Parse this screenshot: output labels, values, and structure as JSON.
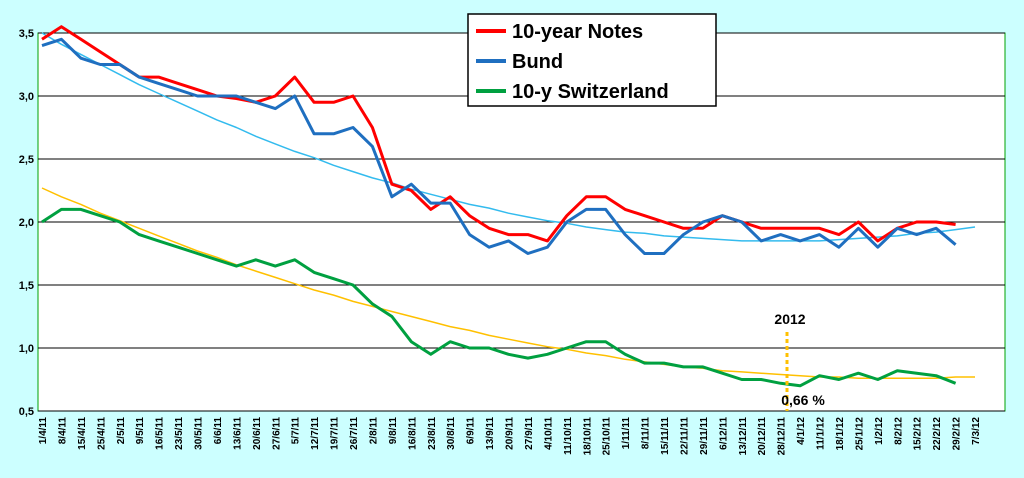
{
  "chart_data": {
    "type": "line",
    "categories": [
      "1/4/11",
      "8/4/11",
      "15/4/11",
      "25/4/11",
      "2/5/11",
      "9/5/11",
      "16/5/11",
      "23/5/11",
      "30/5/11",
      "6/6/11",
      "13/6/11",
      "20/6/11",
      "27/6/11",
      "5/7/11",
      "12/7/11",
      "19/7/11",
      "26/7/11",
      "2/8/11",
      "9/8/11",
      "16/8/11",
      "23/8/11",
      "30/8/11",
      "6/9/11",
      "13/9/11",
      "20/9/11",
      "27/9/11",
      "4/10/11",
      "11/10/11",
      "18/10/11",
      "25/10/11",
      "1/11/11",
      "8/11/11",
      "15/11/11",
      "22/11/11",
      "29/11/11",
      "6/12/11",
      "13/12/11",
      "20/12/11",
      "28/12/11",
      "4/1/12",
      "11/1/12",
      "18/1/12",
      "25/1/12",
      "1/2/12",
      "8/2/12",
      "15/2/12",
      "22/2/12",
      "29/2/12",
      "7/3/12"
    ],
    "series": [
      {
        "name": "10-year Notes",
        "color": "#ff0000",
        "values": [
          3.45,
          3.55,
          3.45,
          3.35,
          3.25,
          3.15,
          3.15,
          3.1,
          3.05,
          3.0,
          2.98,
          2.95,
          3.0,
          3.15,
          2.95,
          2.95,
          3.0,
          2.75,
          2.3,
          2.25,
          2.1,
          2.2,
          2.05,
          1.95,
          1.9,
          1.9,
          1.85,
          2.05,
          2.2,
          2.2,
          2.1,
          2.05,
          2.0,
          1.95,
          1.95,
          2.05,
          2.0,
          1.95,
          1.95,
          1.95,
          1.95,
          1.9,
          2.0,
          1.85,
          1.95,
          2.0,
          2.0,
          1.98,
          null
        ]
      },
      {
        "name": "Bund",
        "color": "#1f6fc0",
        "values": [
          3.4,
          3.45,
          3.3,
          3.25,
          3.25,
          3.15,
          3.1,
          3.05,
          3.0,
          3.0,
          3.0,
          2.95,
          2.9,
          3.0,
          2.7,
          2.7,
          2.75,
          2.6,
          2.2,
          2.3,
          2.15,
          2.15,
          1.9,
          1.8,
          1.85,
          1.75,
          1.8,
          2.0,
          2.1,
          2.1,
          1.9,
          1.75,
          1.75,
          1.9,
          2.0,
          2.05,
          2.0,
          1.85,
          1.9,
          1.85,
          1.9,
          1.8,
          1.95,
          1.8,
          1.95,
          1.9,
          1.95,
          1.82,
          null
        ]
      },
      {
        "name": "10-y Switzerland",
        "color": "#00a040",
        "values": [
          2.0,
          2.1,
          2.1,
          2.05,
          2.0,
          1.9,
          1.85,
          1.8,
          1.75,
          1.7,
          1.65,
          1.7,
          1.65,
          1.7,
          1.6,
          1.55,
          1.5,
          1.35,
          1.25,
          1.05,
          0.95,
          1.05,
          1.0,
          1.0,
          0.95,
          0.92,
          0.95,
          1.0,
          1.05,
          1.05,
          0.95,
          0.88,
          0.88,
          0.85,
          0.85,
          0.8,
          0.75,
          0.75,
          0.72,
          0.7,
          0.78,
          0.75,
          0.8,
          0.75,
          0.82,
          0.8,
          0.78,
          0.72,
          null
        ]
      }
    ],
    "trendlines": [
      {
        "color": "#33bbee",
        "values": [
          3.5,
          3.41,
          3.33,
          3.25,
          3.17,
          3.09,
          3.02,
          2.95,
          2.88,
          2.81,
          2.75,
          2.68,
          2.62,
          2.56,
          2.51,
          2.45,
          2.4,
          2.35,
          2.31,
          2.26,
          2.22,
          2.18,
          2.14,
          2.11,
          2.07,
          2.04,
          2.01,
          1.99,
          1.96,
          1.94,
          1.92,
          1.91,
          1.89,
          1.88,
          1.87,
          1.86,
          1.85,
          1.85,
          1.85,
          1.85,
          1.85,
          1.86,
          1.87,
          1.88,
          1.89,
          1.91,
          1.92,
          1.94,
          1.96
        ]
      },
      {
        "color": "#ffc000",
        "values": [
          2.27,
          2.2,
          2.14,
          2.07,
          2.01,
          1.95,
          1.89,
          1.83,
          1.77,
          1.72,
          1.66,
          1.61,
          1.56,
          1.51,
          1.46,
          1.42,
          1.37,
          1.33,
          1.29,
          1.25,
          1.21,
          1.17,
          1.14,
          1.1,
          1.07,
          1.04,
          1.01,
          0.99,
          0.96,
          0.94,
          0.91,
          0.89,
          0.87,
          0.85,
          0.84,
          0.82,
          0.81,
          0.8,
          0.79,
          0.78,
          0.77,
          0.77,
          0.76,
          0.76,
          0.76,
          0.76,
          0.76,
          0.77,
          0.77
        ]
      }
    ],
    "annotations": [
      "2012",
      "0,66 %"
    ],
    "ylim": [
      0.5,
      3.5
    ],
    "yticks": [
      {
        "value": 0.5,
        "label": "0,5"
      },
      {
        "value": 1.0,
        "label": "1,0"
      },
      {
        "value": 1.5,
        "label": "1,5"
      },
      {
        "value": 2.0,
        "label": "2,0"
      },
      {
        "value": 2.5,
        "label": "2,5"
      },
      {
        "value": 3.0,
        "label": "3,0"
      },
      {
        "value": 3.5,
        "label": "3,5"
      }
    ],
    "grid": true,
    "legend": "top"
  }
}
